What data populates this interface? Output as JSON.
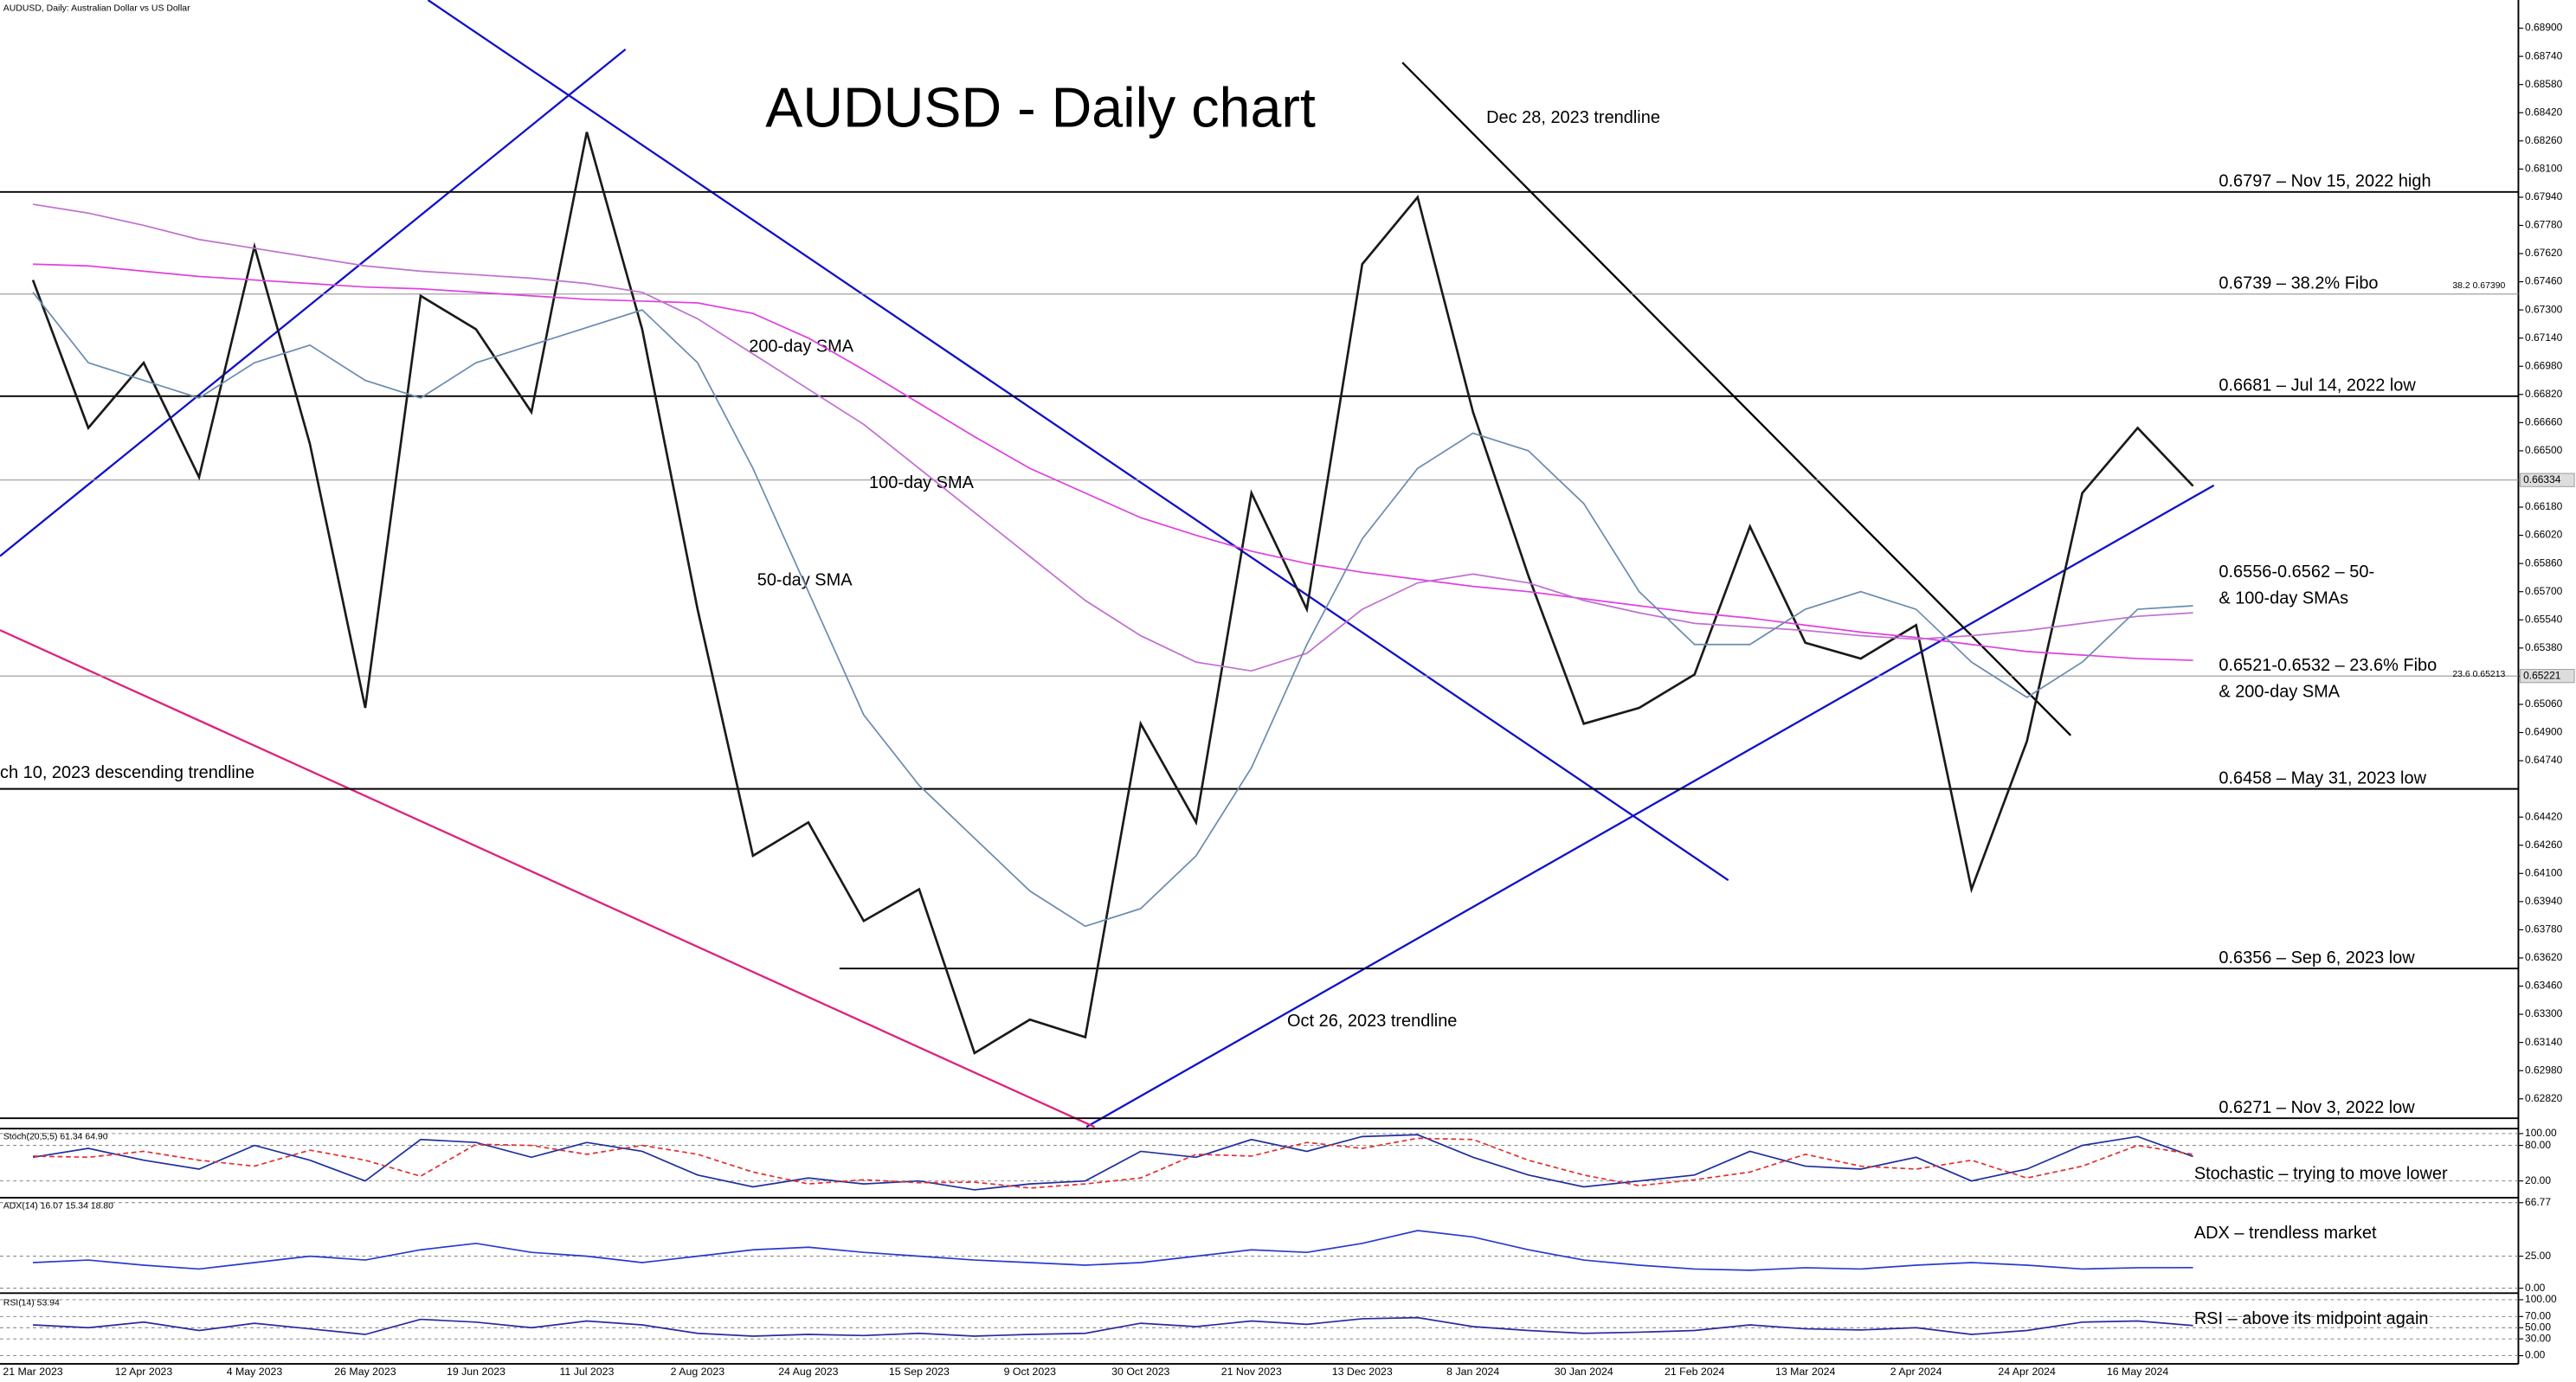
{
  "chart_data": [
    {
      "type": "line",
      "title": "AUDUSD - Daily chart",
      "subtitle": "AUDUSD, Daily:  Australian Dollar vs US Dollar",
      "categories": [
        "21 Mar 2023",
        null,
        "12 Apr 2023",
        null,
        "4 May 2023",
        null,
        "26 May 2023",
        null,
        "19 Jun 2023",
        null,
        "11 Jul 2023",
        null,
        "2 Aug 2023",
        null,
        "24 Aug 2023",
        null,
        "15 Sep 2023",
        null,
        "9 Oct 2023",
        null,
        "30 Oct 2023",
        null,
        "21 Nov 2023",
        null,
        "13 Dec 2023",
        null,
        "8 Jan 2024",
        null,
        "30 Jan 2024",
        null,
        "21 Feb 2024",
        null,
        "13 Mar 2024",
        null,
        "2 Apr 2024",
        null,
        "24 Apr 2024",
        null,
        "16 May 2024",
        null
      ],
      "ylim": [
        0.6266,
        0.6906
      ],
      "yticks": [
        {
          "value": 0.689,
          "label": "0.68900"
        },
        {
          "value": 0.6874,
          "label": "0.68740"
        },
        {
          "value": 0.6858,
          "label": "0.68580"
        },
        {
          "value": 0.6842,
          "label": "0.68420"
        },
        {
          "value": 0.6826,
          "label": "0.68260"
        },
        {
          "value": 0.681,
          "label": "0.68100"
        },
        {
          "value": 0.6794,
          "label": "0.67940"
        },
        {
          "value": 0.6778,
          "label": "0.67780"
        },
        {
          "value": 0.6762,
          "label": "0.67620"
        },
        {
          "value": 0.6746,
          "label": "0.67460"
        },
        {
          "value": 0.673,
          "label": "0.67300"
        },
        {
          "value": 0.6714,
          "label": "0.67140"
        },
        {
          "value": 0.6698,
          "label": "0.66980"
        },
        {
          "value": 0.6682,
          "label": "0.66820"
        },
        {
          "value": 0.6666,
          "label": "0.66660"
        },
        {
          "value": 0.665,
          "label": "0.66500"
        },
        {
          "value": 0.6618,
          "label": "0.66180"
        },
        {
          "value": 0.6602,
          "label": "0.66020"
        },
        {
          "value": 0.6586,
          "label": "0.65860"
        },
        {
          "value": 0.657,
          "label": "0.65700"
        },
        {
          "value": 0.6554,
          "label": "0.65540"
        },
        {
          "value": 0.6538,
          "label": "0.65380"
        },
        {
          "value": 0.6522,
          "label": "0.65220"
        },
        {
          "value": 0.6506,
          "label": "0.65060"
        },
        {
          "value": 0.649,
          "label": "0.64900"
        },
        {
          "value": 0.6474,
          "label": "0.64740"
        },
        {
          "value": 0.6442,
          "label": "0.64420"
        },
        {
          "value": 0.6426,
          "label": "0.64260"
        },
        {
          "value": 0.641,
          "label": "0.64100"
        },
        {
          "value": 0.6394,
          "label": "0.63940"
        },
        {
          "value": 0.6378,
          "label": "0.63780"
        },
        {
          "value": 0.6362,
          "label": "0.63620"
        },
        {
          "value": 0.6346,
          "label": "0.63460"
        },
        {
          "value": 0.633,
          "label": "0.63300"
        },
        {
          "value": 0.6314,
          "label": "0.63140"
        },
        {
          "value": 0.6298,
          "label": "0.62980"
        },
        {
          "value": 0.6282,
          "label": "0.62820"
        }
      ],
      "grid": false,
      "series": [
        {
          "color": "#1a1a1a",
          "values": [
            0.6747,
            0.6663,
            0.67,
            0.6635,
            0.6766,
            0.6654,
            0.6504,
            0.6738,
            0.6719,
            0.6672,
            0.6831,
            0.6719,
            0.656,
            0.642,
            0.6439,
            0.6383,
            0.6401,
            0.6308,
            0.6327,
            0.6317,
            0.6495,
            0.6439,
            0.6626,
            0.656,
            0.6756,
            0.6794,
            0.6672,
            0.6579,
            0.6495,
            0.6504,
            0.6523,
            0.6607,
            0.6541,
            0.6532,
            0.6551,
            0.6401,
            0.6485,
            0.6626,
            0.6663,
            0.663
          ]
        },
        {
          "color": "#e040e0",
          "values": [
            0.6756,
            0.6755,
            0.6752,
            0.6749,
            0.6747,
            0.6745,
            0.6743,
            0.6742,
            0.674,
            0.6738,
            0.6736,
            0.6735,
            0.6734,
            0.6728,
            0.6714,
            0.6696,
            0.6677,
            0.6658,
            0.664,
            0.6626,
            0.6612,
            0.6602,
            0.6593,
            0.6586,
            0.6581,
            0.6577,
            0.6573,
            0.657,
            0.6566,
            0.6562,
            0.6558,
            0.6555,
            0.6551,
            0.6547,
            0.6544,
            0.654,
            0.6536,
            0.6534,
            0.6532,
            0.6531
          ]
        },
        {
          "color": "#c070d0",
          "values": [
            0.679,
            0.6785,
            0.6778,
            0.677,
            0.6765,
            0.676,
            0.6755,
            0.6752,
            0.675,
            0.6748,
            0.6745,
            0.674,
            0.6725,
            0.6705,
            0.6685,
            0.6665,
            0.664,
            0.6615,
            0.659,
            0.6565,
            0.6545,
            0.653,
            0.6525,
            0.6535,
            0.656,
            0.6575,
            0.658,
            0.6575,
            0.6565,
            0.6558,
            0.6552,
            0.655,
            0.6548,
            0.6545,
            0.6543,
            0.6545,
            0.6548,
            0.6552,
            0.6556,
            0.6558
          ]
        },
        {
          "color": "#6a8caf",
          "values": [
            0.674,
            0.67,
            0.669,
            0.668,
            0.67,
            0.671,
            0.669,
            0.668,
            0.67,
            0.671,
            0.672,
            0.673,
            0.67,
            0.664,
            0.657,
            0.65,
            0.646,
            0.643,
            0.64,
            0.638,
            0.639,
            0.642,
            0.647,
            0.654,
            0.66,
            0.664,
            0.666,
            0.665,
            0.662,
            0.657,
            0.654,
            0.654,
            0.656,
            0.657,
            0.656,
            0.653,
            0.651,
            0.653,
            0.656,
            0.6562
          ]
        }
      ],
      "levels": [
        {
          "value": 0.6797,
          "label": "0.6797 – Nov 15, 2022 high",
          "color": "#000000"
        },
        {
          "value": 0.6739,
          "label": "0.6739 – 38.2% Fibo",
          "side_label": "38.2 0.67390",
          "color": "#999999"
        },
        {
          "value": 0.6681,
          "label": "0.6681 – Jul 14, 2022 low",
          "color": "#000000"
        },
        {
          "value": 0.6458,
          "label": "0.6458 – May 31, 2023 low",
          "color": "#000000"
        },
        {
          "value": 0.6356,
          "label": "0.6356 – Sep 6, 2023 low",
          "color": "#000000"
        },
        {
          "value": 0.6271,
          "label": "0.6271 – Nov 3, 2022 low",
          "color": "#000000"
        }
      ],
      "price_tags": [
        0.66334,
        0.65221
      ],
      "annotations": [
        {
          "text": "Dec 28, 2023 trendline",
          "color": "#000000"
        },
        {
          "text": "0.6556-0.6562 – 50-",
          "color": "#000000"
        },
        {
          "text": "& 100-day SMAs",
          "color": "#000000"
        },
        {
          "text": "0.6521-0.6532 – 23.6% Fibo",
          "color": "#000000"
        },
        {
          "text": "& 200-day SMA",
          "color": "#000000"
        },
        {
          "text": "23.6 0.65213",
          "color": "#999999"
        },
        {
          "text": "Oct 26, 2023 trendline",
          "color": "#0000cc"
        },
        {
          "text": "ch 10, 2023 descending trendline",
          "color": "#e0207a"
        },
        {
          "text": "200-day SMA",
          "color": "#e020e0"
        },
        {
          "text": "100-day SMA",
          "color": "#b060c8"
        },
        {
          "text": "50-day SMA",
          "color": "#4a7aa8"
        }
      ]
    },
    {
      "type": "line",
      "title": "Stoch(20,5,5) 61.34 64.90",
      "annotation": "Stochastic – trying to move lower",
      "ylim": [
        0,
        100
      ],
      "yticks": [
        {
          "value": 100,
          "label": "100.00"
        },
        {
          "value": 80,
          "label": "80.00"
        },
        {
          "value": 20,
          "label": "20.00"
        }
      ],
      "grid": true,
      "series": [
        {
          "color": "#1f2f9f",
          "values": [
            60,
            75,
            55,
            40,
            80,
            55,
            20,
            90,
            85,
            60,
            85,
            70,
            30,
            10,
            25,
            15,
            20,
            5,
            15,
            20,
            70,
            60,
            90,
            70,
            95,
            98,
            60,
            30,
            10,
            20,
            30,
            70,
            45,
            40,
            60,
            20,
            40,
            80,
            95,
            61.34
          ]
        },
        {
          "color": "#e03030",
          "dash": true,
          "values": [
            62,
            60,
            70,
            55,
            45,
            72,
            55,
            28,
            82,
            80,
            65,
            80,
            65,
            35,
            15,
            22,
            17,
            18,
            8,
            15,
            25,
            65,
            62,
            85,
            75,
            92,
            90,
            55,
            30,
            12,
            22,
            35,
            65,
            45,
            40,
            55,
            25,
            45,
            80,
            64.9
          ]
        }
      ]
    },
    {
      "type": "line",
      "title": "ADX(14) 16.07 15.34 18.80",
      "annotation": "ADX – trendless market",
      "ylim": [
        0,
        66.77
      ],
      "yticks": [
        {
          "value": 66.77,
          "label": "66.77"
        },
        {
          "value": 25,
          "label": "25.00"
        },
        {
          "value": 0,
          "label": "0.00"
        }
      ],
      "grid": true,
      "series": [
        {
          "color": "#2a3ad0",
          "values": [
            20,
            22,
            18,
            15,
            20,
            25,
            22,
            30,
            35,
            28,
            25,
            20,
            25,
            30,
            32,
            28,
            25,
            22,
            20,
            18,
            20,
            25,
            30,
            28,
            35,
            45,
            40,
            30,
            22,
            18,
            15,
            14,
            16,
            15,
            18,
            20,
            18,
            15,
            16,
            16.07
          ]
        }
      ]
    },
    {
      "type": "line",
      "title": "RSI(14) 53.94",
      "annotation": "RSI – above its midpoint again",
      "ylim": [
        0,
        100
      ],
      "yticks": [
        {
          "value": 100,
          "label": "100.00"
        },
        {
          "value": 70,
          "label": "70.00"
        },
        {
          "value": 50,
          "label": "50.00"
        },
        {
          "value": 30,
          "label": "30.00"
        },
        {
          "value": 0,
          "label": "0.00"
        }
      ],
      "grid": true,
      "series": [
        {
          "color": "#2a2aa0",
          "values": [
            55,
            50,
            60,
            45,
            58,
            48,
            38,
            65,
            60,
            50,
            62,
            55,
            40,
            35,
            38,
            36,
            40,
            35,
            38,
            40,
            58,
            52,
            62,
            56,
            66,
            68,
            52,
            45,
            40,
            42,
            45,
            55,
            48,
            46,
            50,
            38,
            45,
            60,
            62,
            53.94
          ]
        }
      ]
    }
  ]
}
